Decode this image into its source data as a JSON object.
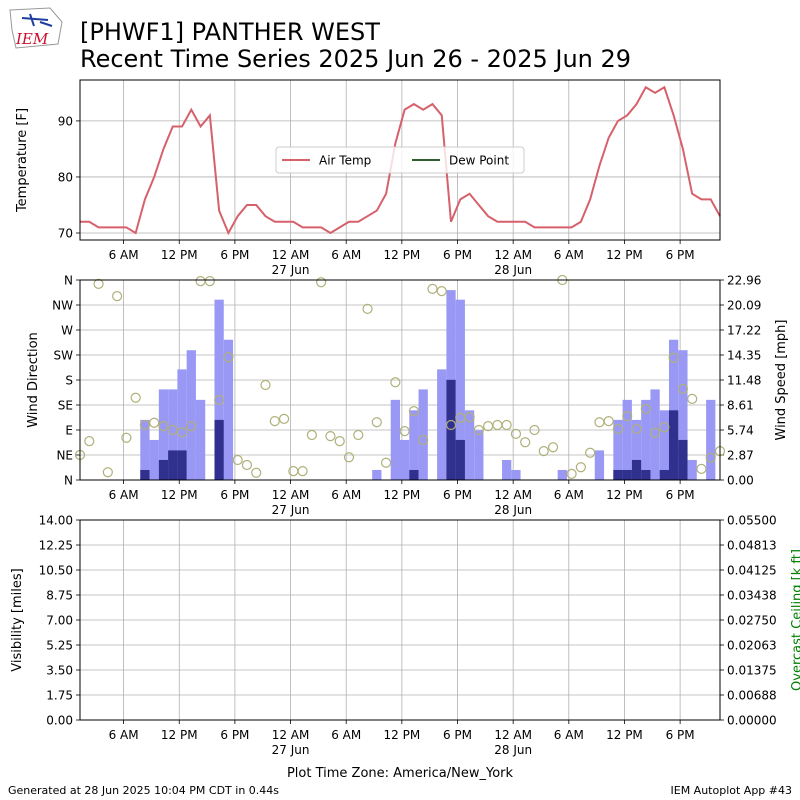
{
  "logo": "IEM",
  "title": "[PHWF1] PANTHER WEST",
  "subtitle": "Recent Time Series 2025 Jun 26 - 2025 Jun 29",
  "footer_left": "Generated at 28 Jun 2025 10:04 PM CDT in 0.44s",
  "footer_right": "IEM Autoplot App #43",
  "chart_data": [
    {
      "type": "line",
      "ylabel": "Temperature [F]",
      "x": [
        1.3,
        2.3,
        3.3,
        4.3,
        5.3,
        6.3,
        7.3,
        8.3,
        9.3,
        10.3,
        11.3,
        12.3,
        13.3,
        14.3,
        15.3,
        16.3,
        17.3,
        18.3,
        19.3,
        20.3,
        21.3,
        22.3,
        23.3,
        24.3,
        25.3,
        26.3,
        27.3,
        28.3,
        29.3,
        30.3,
        31.3,
        32.3,
        33.3,
        34.3,
        35.3,
        36.3,
        37.3,
        38.3,
        39.3,
        40.3,
        41.3,
        42.3,
        43.3,
        44.3,
        45.3,
        46.3,
        47.3,
        48.3,
        49.3,
        50.3,
        51.3,
        52.3,
        53.3,
        54.3,
        55.3,
        56.3,
        57.3,
        58.3,
        59.3,
        60.3,
        61.3,
        62.3,
        63.3,
        64.3,
        65.3,
        66.3,
        67.3,
        68.3,
        69.3,
        70.3
      ],
      "series": [
        {
          "name": "Air Temp",
          "color": "#d6616b",
          "values": [
            72,
            72,
            71,
            71,
            71,
            71,
            70,
            76,
            80,
            85,
            89,
            89,
            92,
            89,
            91,
            74,
            70,
            73,
            75,
            75,
            73,
            72,
            72,
            72,
            71,
            71,
            71,
            70,
            71,
            72,
            72,
            73,
            74,
            77,
            86,
            92,
            93,
            92,
            93,
            91,
            72,
            76,
            77,
            75,
            73,
            72,
            72,
            72,
            72,
            71,
            71,
            71,
            71,
            71,
            72,
            76,
            82,
            87,
            90,
            91,
            93,
            96,
            95,
            96,
            91,
            85,
            77,
            76,
            76,
            73
          ]
        },
        {
          "name": "Dew Point",
          "color": "#2e5e2e",
          "values": [
            null,
            null,
            null,
            null,
            null,
            null,
            null,
            null,
            null,
            null,
            null,
            null,
            null,
            null,
            null,
            null,
            null,
            null,
            null,
            null,
            null,
            null,
            null,
            null,
            null,
            null,
            null,
            null,
            null,
            null,
            null,
            null,
            null,
            null,
            null,
            null,
            null,
            null,
            null,
            null,
            null,
            null,
            null,
            null,
            null,
            null,
            null,
            null,
            null,
            null,
            null,
            null,
            null,
            null,
            null,
            null,
            null,
            null,
            null,
            null,
            null,
            null,
            null,
            null,
            null,
            null,
            null,
            null,
            null,
            null
          ]
        }
      ],
      "xlim": [
        1.3,
        70.3
      ],
      "ylim": [
        68.75,
        97.3
      ],
      "xticks": [
        {
          "value": 6,
          "label": "6 AM"
        },
        {
          "value": 12,
          "label": "12 PM"
        },
        {
          "value": 18,
          "label": "6 PM"
        },
        {
          "value": 24,
          "label": "12 AM"
        },
        {
          "value": 30,
          "label": "6 AM"
        },
        {
          "value": 36,
          "label": "12 PM"
        },
        {
          "value": 42,
          "label": "6 PM"
        },
        {
          "value": 48,
          "label": "12 AM"
        },
        {
          "value": 54,
          "label": "6 AM"
        },
        {
          "value": 60,
          "label": "12 PM"
        },
        {
          "value": 66,
          "label": "6 PM"
        }
      ],
      "xsublabels": [
        {
          "value": 24,
          "label": "27 Jun"
        },
        {
          "value": 48,
          "label": "28 Jun"
        }
      ],
      "yticks": [
        70,
        80,
        90
      ],
      "grid": true,
      "legend": "center"
    },
    {
      "type": "combo",
      "ylabel": "Wind Direction",
      "y2label": "Wind Speed [mph]",
      "x": [
        1.3,
        2.3,
        3.3,
        4.3,
        5.3,
        6.3,
        7.3,
        8.3,
        9.3,
        10.3,
        11.3,
        12.3,
        13.3,
        14.3,
        15.3,
        16.3,
        17.3,
        18.3,
        19.3,
        20.3,
        21.3,
        22.3,
        23.3,
        24.3,
        25.3,
        26.3,
        27.3,
        28.3,
        29.3,
        30.3,
        31.3,
        32.3,
        33.3,
        34.3,
        35.3,
        36.3,
        37.3,
        38.3,
        39.3,
        40.3,
        41.3,
        42.3,
        43.3,
        44.3,
        45.3,
        46.3,
        47.3,
        48.3,
        49.3,
        50.3,
        51.3,
        52.3,
        53.3,
        54.3,
        55.3,
        56.3,
        57.3,
        58.3,
        59.3,
        60.3,
        61.3,
        62.3,
        63.3,
        64.3,
        65.3,
        66.3,
        67.3,
        68.3,
        69.3,
        70.3
      ],
      "series": [
        {
          "type": "bar",
          "axis": "y2",
          "color": "#9999f5",
          "values": [
            0,
            0,
            0,
            0,
            0,
            0,
            0,
            6.9,
            4.6,
            10.4,
            10.4,
            12.7,
            14.9,
            9.2,
            0,
            20.7,
            16.1,
            0,
            0,
            0,
            0,
            0,
            0,
            0,
            0,
            0,
            0,
            0,
            0,
            0,
            0,
            0,
            1.15,
            0,
            9.2,
            4.6,
            8.0,
            10.4,
            0,
            12.7,
            21.8,
            20.7,
            8.0,
            5.7,
            0,
            0,
            2.3,
            1.15,
            0,
            0,
            0,
            0,
            1.15,
            0,
            0,
            0,
            3.4,
            0,
            6.9,
            9.2,
            6.9,
            9.2,
            10.4,
            8.0,
            16.1,
            14.9,
            2.3,
            0,
            9.2,
            0
          ]
        },
        {
          "type": "bar",
          "axis": "y2",
          "color": "#30308f",
          "values": [
            0,
            0,
            0,
            0,
            0,
            0,
            0,
            1.15,
            0,
            2.3,
            3.4,
            3.4,
            0,
            0,
            0,
            6.9,
            0,
            0,
            0,
            0,
            0,
            0,
            0,
            0,
            0,
            0,
            0,
            0,
            0,
            0,
            0,
            0,
            0,
            0,
            0,
            0,
            1.15,
            0,
            0,
            0,
            11.5,
            4.6,
            0,
            0,
            0,
            0,
            0,
            0,
            0,
            0,
            0,
            0,
            0,
            0,
            0,
            0,
            0,
            0,
            1.15,
            1.15,
            2.3,
            1.15,
            0,
            1.15,
            8.0,
            4.6,
            0,
            0,
            0,
            0
          ]
        },
        {
          "type": "scatter",
          "color": "#b0b07a",
          "values": [
            45,
            70,
            353,
            14,
            331,
            76,
            148,
            99,
            103,
            97,
            90,
            86,
            97,
            358,
            358,
            144,
            221,
            36,
            27,
            13,
            171,
            106,
            110,
            16,
            16,
            81,
            356,
            79,
            70,
            41,
            81,
            308,
            104,
            31,
            176,
            88,
            124,
            72,
            344,
            340,
            99,
            112,
            113,
            90,
            97,
            99,
            99,
            83,
            68,
            90,
            52,
            59,
            360,
            11,
            23,
            49,
            104,
            106,
            92,
            115,
            92,
            128,
            85,
            95,
            220,
            164,
            146,
            20,
            40,
            52
          ]
        }
      ],
      "xlim": [
        1.3,
        70.3
      ],
      "ylim": [
        0,
        360
      ],
      "y2lim": [
        0,
        22.96
      ],
      "xticks": [
        {
          "value": 6,
          "label": "6 AM"
        },
        {
          "value": 12,
          "label": "12 PM"
        },
        {
          "value": 18,
          "label": "6 PM"
        },
        {
          "value": 24,
          "label": "12 AM"
        },
        {
          "value": 30,
          "label": "6 AM"
        },
        {
          "value": 36,
          "label": "12 PM"
        },
        {
          "value": 42,
          "label": "6 PM"
        },
        {
          "value": 48,
          "label": "12 AM"
        },
        {
          "value": 54,
          "label": "6 AM"
        },
        {
          "value": 60,
          "label": "12 PM"
        },
        {
          "value": 66,
          "label": "6 PM"
        }
      ],
      "xsublabels": [
        {
          "value": 24,
          "label": "27 Jun"
        },
        {
          "value": 48,
          "label": "28 Jun"
        }
      ],
      "yticks": [
        {
          "value": 0,
          "label": "N"
        },
        {
          "value": 45,
          "label": "NE"
        },
        {
          "value": 90,
          "label": "E"
        },
        {
          "value": 135,
          "label": "SE"
        },
        {
          "value": 180,
          "label": "S"
        },
        {
          "value": 225,
          "label": "SW"
        },
        {
          "value": 270,
          "label": "W"
        },
        {
          "value": 315,
          "label": "NW"
        },
        {
          "value": 360,
          "label": "N"
        }
      ],
      "y2ticks": [
        {
          "value": 0,
          "label": "0.00"
        },
        2.87,
        5.74,
        8.61,
        11.48,
        14.35,
        17.22,
        20.09,
        22.96
      ],
      "grid": true
    },
    {
      "type": "line",
      "ylabel": "Visibility [miles]",
      "y2label": "Overcast Ceiling [k ft]",
      "y2label_color": "#008000",
      "xlabel": "Plot Time Zone: America/New_York",
      "xlim": [
        1.3,
        70.3
      ],
      "ylim": [
        0,
        14
      ],
      "y2lim": [
        0,
        0.055
      ],
      "xticks": [
        {
          "value": 6,
          "label": "6 AM"
        },
        {
          "value": 12,
          "label": "12 PM"
        },
        {
          "value": 18,
          "label": "6 PM"
        },
        {
          "value": 24,
          "label": "12 AM"
        },
        {
          "value": 30,
          "label": "6 AM"
        },
        {
          "value": 36,
          "label": "12 PM"
        },
        {
          "value": 42,
          "label": "6 PM"
        },
        {
          "value": 48,
          "label": "12 AM"
        },
        {
          "value": 54,
          "label": "6 AM"
        },
        {
          "value": 60,
          "label": "12 PM"
        },
        {
          "value": 66,
          "label": "6 PM"
        }
      ],
      "xsublabels": [
        {
          "value": 24,
          "label": "27 Jun"
        },
        {
          "value": 48,
          "label": "28 Jun"
        }
      ],
      "yticks": [
        {
          "value": 0,
          "label": "0.00"
        },
        1.75,
        {
          "value": 3.5,
          "label": "3.50"
        },
        5.25,
        {
          "value": 7,
          "label": "7.00"
        },
        8.75,
        {
          "value": 10.5,
          "label": "10.50"
        },
        12.25,
        {
          "value": 14,
          "label": "14.00"
        }
      ],
      "y2ticks": [
        {
          "value": 0,
          "label": "0.00000"
        },
        {
          "value": 0.006875,
          "label": "0.00688"
        },
        {
          "value": 0.01375,
          "label": "0.01375"
        },
        {
          "value": 0.020625,
          "label": "0.02063"
        },
        {
          "value": 0.0275,
          "label": "0.02750"
        },
        {
          "value": 0.034375,
          "label": "0.03438"
        },
        {
          "value": 0.04125,
          "label": "0.04125"
        },
        {
          "value": 0.048125,
          "label": "0.04813"
        },
        {
          "value": 0.055,
          "label": "0.05500"
        }
      ],
      "grid": true
    }
  ]
}
